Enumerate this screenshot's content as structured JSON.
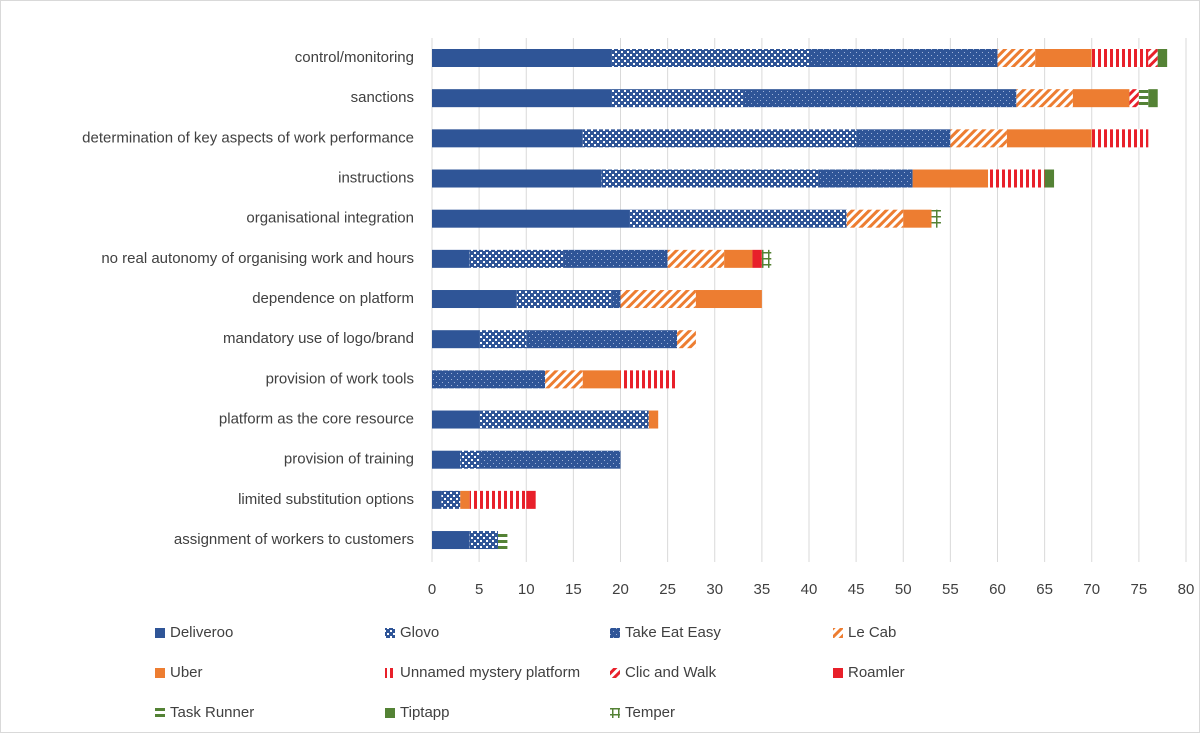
{
  "chart_data": {
    "type": "stacked-bar-horizontal",
    "categories": [
      "control/monitoring",
      "sanctions",
      "determination of key aspects of work performance",
      "instructions",
      "organisational integration",
      "no real autonomy of organising work and hours",
      "dependence on platform",
      "mandatory use of logo/brand",
      "provision of work tools",
      "platform as the core resource",
      "provision of training",
      "limited  substitution options",
      "assignment of workers to customers"
    ],
    "series": [
      {
        "name": "Deliveroo",
        "color": "#2f5597",
        "pattern": "solid",
        "values": [
          19,
          19,
          16,
          18,
          21,
          4,
          9,
          5,
          0,
          5,
          3,
          1,
          4
        ]
      },
      {
        "name": "Glovo",
        "color": "#2f5597",
        "pattern": "checker",
        "values": [
          21,
          14,
          29,
          23,
          23,
          10,
          10,
          5,
          0,
          18,
          2,
          2,
          3
        ]
      },
      {
        "name": "Take Eat Easy",
        "color": "#2f5597",
        "pattern": "dots",
        "values": [
          20,
          29,
          10,
          10,
          0,
          11,
          1,
          16,
          12,
          0,
          15,
          0,
          0
        ]
      },
      {
        "name": "Le Cab",
        "color": "#ed7d31",
        "pattern": "diagonal",
        "values": [
          4,
          6,
          6,
          0,
          6,
          6,
          8,
          2,
          4,
          0,
          0,
          0,
          0
        ]
      },
      {
        "name": "Uber",
        "color": "#ed7d31",
        "pattern": "solid",
        "values": [
          6,
          6,
          9,
          8,
          3,
          3,
          7,
          0,
          4,
          1,
          0,
          1,
          0
        ]
      },
      {
        "name": "Unnamed mystery platform",
        "color": "#e8202a",
        "pattern": "vertical",
        "values": [
          6,
          0,
          6,
          6,
          0,
          0,
          0,
          0,
          6,
          0,
          0,
          6,
          0
        ]
      },
      {
        "name": "Clic and Walk",
        "color": "#e8202a",
        "pattern": "diagonal",
        "values": [
          1,
          1,
          0,
          0,
          0,
          0,
          0,
          0,
          0,
          0,
          0,
          0,
          0
        ]
      },
      {
        "name": "Roamler",
        "color": "#e8202a",
        "pattern": "solid",
        "values": [
          0,
          0,
          0,
          0,
          0,
          1,
          0,
          0,
          0,
          0,
          0,
          1,
          0
        ]
      },
      {
        "name": "Task Runner",
        "color": "#548235",
        "pattern": "horizontal",
        "values": [
          0,
          1,
          0,
          0,
          0,
          0,
          0,
          0,
          0,
          0,
          0,
          0,
          1
        ]
      },
      {
        "name": "Tiptapp",
        "color": "#548235",
        "pattern": "solid",
        "values": [
          1,
          1,
          0,
          1,
          0,
          0,
          0,
          0,
          0,
          0,
          0,
          0,
          0
        ]
      },
      {
        "name": "Temper",
        "color": "#548235",
        "pattern": "outline",
        "values": [
          0,
          0,
          0,
          0,
          1,
          1,
          0,
          0,
          0,
          0,
          0,
          0,
          0
        ]
      }
    ],
    "xlim": [
      0,
      80
    ],
    "xticks": [
      0,
      5,
      10,
      15,
      20,
      25,
      30,
      35,
      40,
      45,
      50,
      55,
      60,
      65,
      70,
      75,
      80
    ],
    "grid": true
  }
}
